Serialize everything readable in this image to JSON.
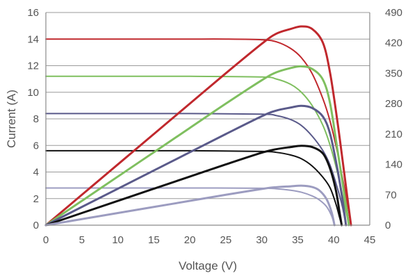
{
  "chart_data": {
    "type": "line",
    "title": "",
    "xlabel": "Voltage (V)",
    "ylabel": "Current (A)",
    "y2label": "",
    "xlim": [
      0,
      45
    ],
    "ylim": [
      0,
      16
    ],
    "y2lim": [
      0,
      490
    ],
    "xticks": [
      "0",
      "5",
      "10",
      "15",
      "20",
      "25",
      "30",
      "35",
      "40",
      "45"
    ],
    "yticks": [
      "0",
      "2",
      "4",
      "6",
      "8",
      "10",
      "12",
      "14",
      "16"
    ],
    "y2ticks": [
      "0",
      "70",
      "140",
      "210",
      "280",
      "350",
      "420",
      "490"
    ],
    "grid": "horizontal",
    "legend": "none",
    "series": [
      {
        "kind": "current",
        "color": "#c0282d",
        "points": [
          [
            0,
            14.0
          ],
          [
            5,
            14.0
          ],
          [
            10,
            14.0
          ],
          [
            15,
            14.0
          ],
          [
            20,
            14.0
          ],
          [
            25,
            14.0
          ],
          [
            30,
            13.95
          ],
          [
            32,
            13.8
          ],
          [
            34,
            13.3
          ],
          [
            35.5,
            12.6
          ],
          [
            37,
            11.4
          ],
          [
            38.5,
            9.5
          ],
          [
            39.5,
            7.8
          ],
          [
            40.5,
            5.5
          ],
          [
            41.3,
            3.3
          ],
          [
            42,
            1.3
          ],
          [
            42.4,
            0
          ]
        ]
      },
      {
        "kind": "power",
        "color": "#c0282d",
        "points": [
          [
            0,
            0
          ],
          [
            5,
            70
          ],
          [
            10,
            140
          ],
          [
            15,
            210
          ],
          [
            20,
            280
          ],
          [
            25,
            350
          ],
          [
            30,
            418
          ],
          [
            32,
            441
          ],
          [
            34,
            452
          ],
          [
            35.5,
            458
          ],
          [
            37,
            452
          ],
          [
            38.5,
            420
          ],
          [
            39.5,
            350
          ],
          [
            40.5,
            240
          ],
          [
            41.3,
            140
          ],
          [
            42,
            50
          ],
          [
            42.4,
            0
          ]
        ]
      },
      {
        "kind": "current",
        "color": "#7fbf5f",
        "points": [
          [
            0,
            11.2
          ],
          [
            10,
            11.2
          ],
          [
            20,
            11.2
          ],
          [
            30,
            11.15
          ],
          [
            32,
            11.0
          ],
          [
            34,
            10.6
          ],
          [
            35.5,
            10.0
          ],
          [
            37,
            9.0
          ],
          [
            38.5,
            7.5
          ],
          [
            39.5,
            6.0
          ],
          [
            40.5,
            4.0
          ],
          [
            41.2,
            2.3
          ],
          [
            41.8,
            0.8
          ],
          [
            42.1,
            0
          ]
        ]
      },
      {
        "kind": "power",
        "color": "#7fbf5f",
        "points": [
          [
            0,
            0
          ],
          [
            5,
            56
          ],
          [
            10,
            112
          ],
          [
            15,
            168
          ],
          [
            20,
            224
          ],
          [
            25,
            280
          ],
          [
            30,
            334
          ],
          [
            32,
            352
          ],
          [
            34,
            362
          ],
          [
            35.5,
            366
          ],
          [
            37,
            360
          ],
          [
            38.5,
            335
          ],
          [
            39.5,
            280
          ],
          [
            40.5,
            175
          ],
          [
            41.2,
            100
          ],
          [
            41.8,
            35
          ],
          [
            42.1,
            0
          ]
        ]
      },
      {
        "kind": "current",
        "color": "#5a5a8a",
        "points": [
          [
            0,
            8.4
          ],
          [
            10,
            8.4
          ],
          [
            20,
            8.4
          ],
          [
            30,
            8.35
          ],
          [
            32,
            8.25
          ],
          [
            34,
            7.95
          ],
          [
            35.5,
            7.5
          ],
          [
            37,
            6.7
          ],
          [
            38.5,
            5.6
          ],
          [
            39.5,
            4.5
          ],
          [
            40.5,
            2.8
          ],
          [
            41.2,
            1.4
          ],
          [
            41.7,
            0
          ]
        ]
      },
      {
        "kind": "power",
        "color": "#5a5a8a",
        "points": [
          [
            0,
            0
          ],
          [
            5,
            42
          ],
          [
            10,
            84
          ],
          [
            15,
            126
          ],
          [
            20,
            168
          ],
          [
            25,
            210
          ],
          [
            30,
            251
          ],
          [
            32,
            264
          ],
          [
            34,
            271
          ],
          [
            35.5,
            275
          ],
          [
            37,
            270
          ],
          [
            38.5,
            250
          ],
          [
            39.5,
            210
          ],
          [
            40.5,
            130
          ],
          [
            41.2,
            60
          ],
          [
            41.7,
            0
          ]
        ]
      },
      {
        "kind": "current",
        "color": "#111111",
        "points": [
          [
            0,
            5.6
          ],
          [
            10,
            5.6
          ],
          [
            20,
            5.6
          ],
          [
            30,
            5.55
          ],
          [
            32,
            5.48
          ],
          [
            34,
            5.28
          ],
          [
            35.5,
            5.0
          ],
          [
            37,
            4.45
          ],
          [
            38.5,
            3.6
          ],
          [
            39.5,
            2.8
          ],
          [
            40.3,
            1.6
          ],
          [
            40.8,
            0.6
          ],
          [
            41.1,
            0
          ]
        ]
      },
      {
        "kind": "power",
        "color": "#111111",
        "points": [
          [
            0,
            0
          ],
          [
            5,
            28
          ],
          [
            10,
            56
          ],
          [
            15,
            84
          ],
          [
            20,
            112
          ],
          [
            25,
            140
          ],
          [
            30,
            167
          ],
          [
            32,
            175
          ],
          [
            34,
            180
          ],
          [
            35.5,
            183
          ],
          [
            37,
            180
          ],
          [
            38.5,
            165
          ],
          [
            39.5,
            130
          ],
          [
            40.3,
            80
          ],
          [
            40.8,
            30
          ],
          [
            41.1,
            0
          ]
        ]
      },
      {
        "kind": "current",
        "color": "#9c9cc0",
        "points": [
          [
            0,
            2.8
          ],
          [
            10,
            2.8
          ],
          [
            20,
            2.8
          ],
          [
            30,
            2.78
          ],
          [
            32,
            2.74
          ],
          [
            34,
            2.63
          ],
          [
            35.5,
            2.48
          ],
          [
            37,
            2.2
          ],
          [
            38,
            1.9
          ],
          [
            39,
            1.4
          ],
          [
            39.7,
            0.7
          ],
          [
            40.1,
            0
          ]
        ]
      },
      {
        "kind": "power",
        "color": "#9c9cc0",
        "points": [
          [
            0,
            0
          ],
          [
            5,
            14
          ],
          [
            10,
            28
          ],
          [
            15,
            42
          ],
          [
            20,
            56
          ],
          [
            25,
            70
          ],
          [
            30,
            83.5
          ],
          [
            32,
            87.5
          ],
          [
            34,
            89.5
          ],
          [
            35.5,
            91
          ],
          [
            37,
            88
          ],
          [
            38,
            80
          ],
          [
            39,
            60
          ],
          [
            39.7,
            30
          ],
          [
            40.1,
            0
          ]
        ]
      }
    ]
  }
}
